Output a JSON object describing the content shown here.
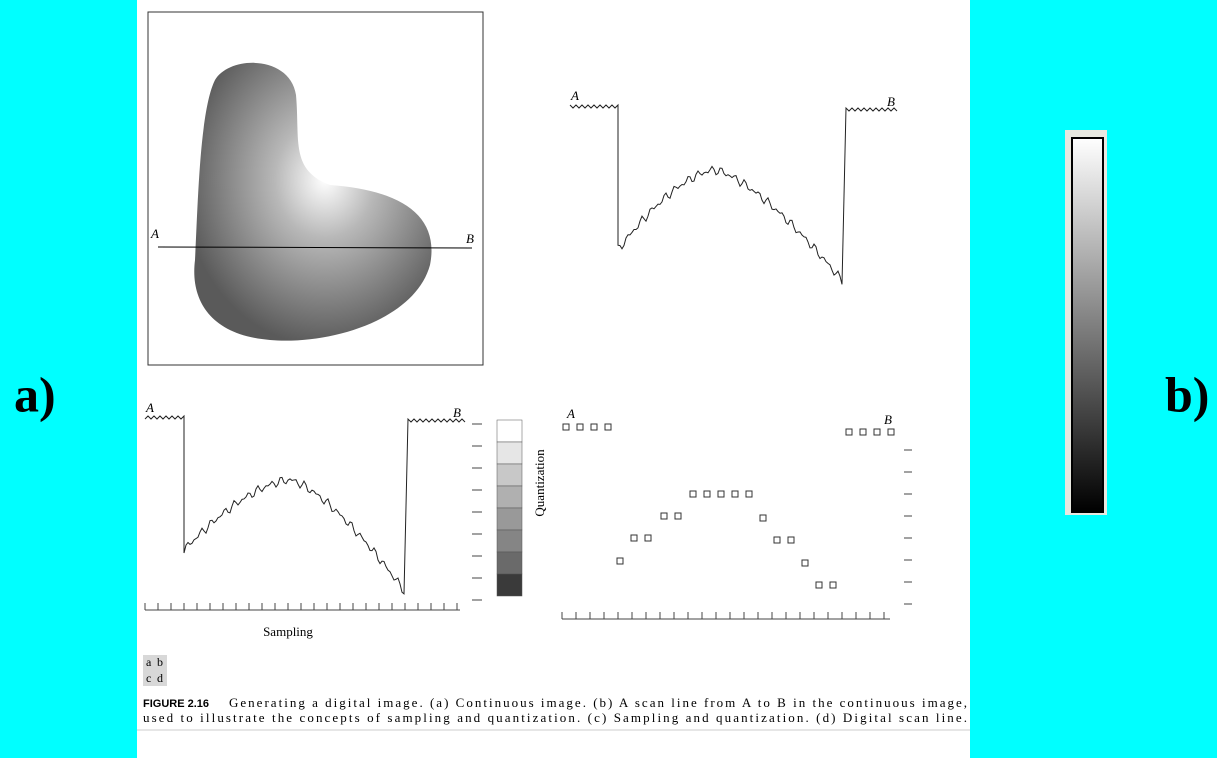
{
  "slide": {
    "left_label": "a)",
    "right_label": "b)"
  },
  "figure": {
    "panels": {
      "a": {
        "start": "A",
        "end": "B"
      },
      "b": {
        "start": "A",
        "end": "B"
      },
      "c": {
        "start": "A",
        "end": "B",
        "x_axis": "Sampling",
        "y_axis": "Quantization"
      },
      "d": {
        "start": "A",
        "end": "B"
      }
    },
    "panel_key": [
      [
        "a",
        "b"
      ],
      [
        "c",
        "d"
      ]
    ],
    "caption": {
      "number": "FIGURE 2.16",
      "lines": [
        "Generating a digital image. (a) Continuous image. (b) A scan line from A to B in the continuous image,",
        "used to illustrate the concepts of sampling and quantization. (c) Sampling and quantization. (d) Digital scan line."
      ]
    }
  }
}
